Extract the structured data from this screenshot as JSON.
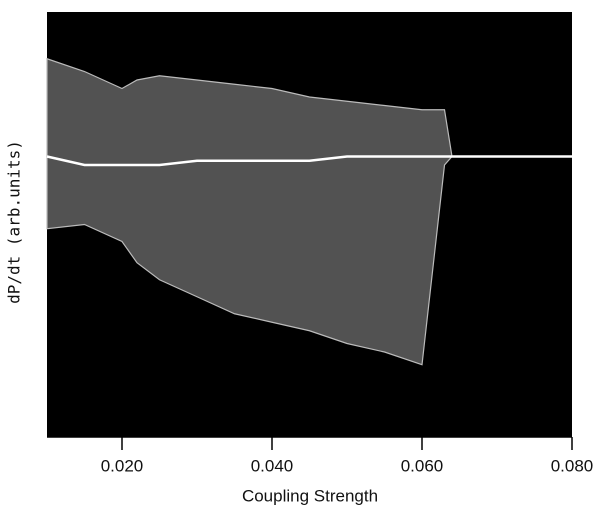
{
  "chart_data": {
    "type": "band",
    "x_label": "Coupling Strength",
    "y_label": "dP/dt  (arb.units)",
    "xlim": [
      0.01,
      0.08
    ],
    "ylim": [
      0,
      1
    ],
    "xticks": [
      {
        "value": 0.02,
        "label": "0.020"
      },
      {
        "value": 0.04,
        "label": "0.040"
      },
      {
        "value": 0.06,
        "label": "0.060"
      },
      {
        "value": 0.08,
        "label": "0.080"
      }
    ],
    "background": "#000000",
    "x": [
      0.01,
      0.015,
      0.02,
      0.022,
      0.025,
      0.03,
      0.035,
      0.04,
      0.045,
      0.05,
      0.055,
      0.06,
      0.063,
      0.064,
      0.07,
      0.08
    ],
    "band": {
      "color": "#6e6e6e",
      "upper": [
        0.89,
        0.86,
        0.82,
        0.84,
        0.85,
        0.84,
        0.83,
        0.82,
        0.8,
        0.79,
        0.78,
        0.77,
        0.77,
        0.66,
        0.66,
        0.66
      ],
      "lower": [
        0.49,
        0.5,
        0.46,
        0.41,
        0.37,
        0.33,
        0.29,
        0.27,
        0.25,
        0.22,
        0.2,
        0.17,
        0.64,
        0.66,
        0.66,
        0.66
      ]
    },
    "ridge": {
      "color": "#ffffff",
      "values": [
        0.66,
        0.64,
        0.64,
        0.64,
        0.64,
        0.65,
        0.65,
        0.65,
        0.65,
        0.66,
        0.66,
        0.66,
        0.66,
        0.66,
        0.66,
        0.66
      ]
    }
  }
}
